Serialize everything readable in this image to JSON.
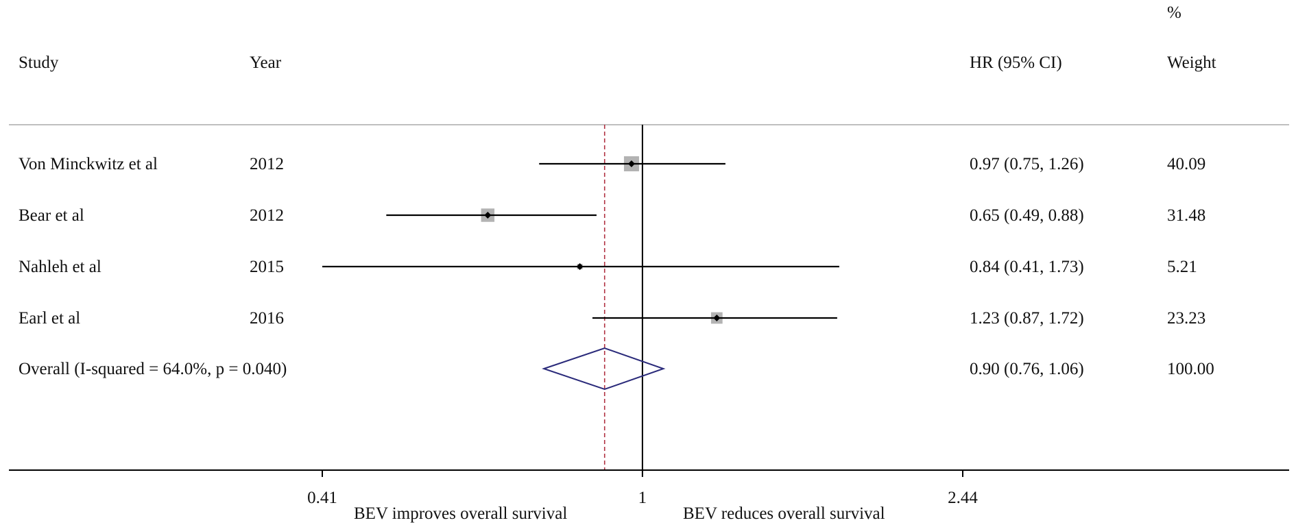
{
  "headers": {
    "study": "Study",
    "year": "Year",
    "hr": "HR (95% CI)",
    "weight_pct": "%",
    "weight": "Weight"
  },
  "chart_data": {
    "type": "forest",
    "x_scale": "log",
    "x_ticks": [
      "0.41",
      "1",
      "2.44"
    ],
    "x_tick_values": [
      0.41,
      1,
      2.44
    ],
    "null_line": 1,
    "pooled_line": 0.9,
    "xlabel_left": "BEV improves overall survival",
    "xlabel_right": "BEV reduces overall survival",
    "studies": [
      {
        "study": "Von Minckwitz et al",
        "year": "2012",
        "hr": 0.97,
        "lo": 0.75,
        "hi": 1.26,
        "ci_text": "0.97 (0.75, 1.26)",
        "weight": 40.09,
        "weight_text": "40.09"
      },
      {
        "study": "Bear et al",
        "year": "2012",
        "hr": 0.65,
        "lo": 0.49,
        "hi": 0.88,
        "ci_text": "0.65 (0.49, 0.88)",
        "weight": 31.48,
        "weight_text": "31.48"
      },
      {
        "study": "Nahleh et al",
        "year": "2015",
        "hr": 0.84,
        "lo": 0.41,
        "hi": 1.73,
        "ci_text": "0.84 (0.41, 1.73)",
        "weight": 5.21,
        "weight_text": "5.21"
      },
      {
        "study": "Earl et al",
        "year": "2016",
        "hr": 1.23,
        "lo": 0.87,
        "hi": 1.72,
        "ci_text": "1.23 (0.87, 1.72)",
        "weight": 23.23,
        "weight_text": "23.23"
      }
    ],
    "overall": {
      "label": "Overall  (I-squared = 64.0%, p = 0.040)",
      "hr": 0.9,
      "lo": 0.76,
      "hi": 1.06,
      "ci_text": "0.90 (0.76, 1.06)",
      "weight_text": "100.00"
    },
    "colors": {
      "line": "#000000",
      "box": "#b3b3b3",
      "diamond": "#2a2a7a",
      "pooled": "#b03040",
      "rule": "#bfbfbf"
    }
  }
}
